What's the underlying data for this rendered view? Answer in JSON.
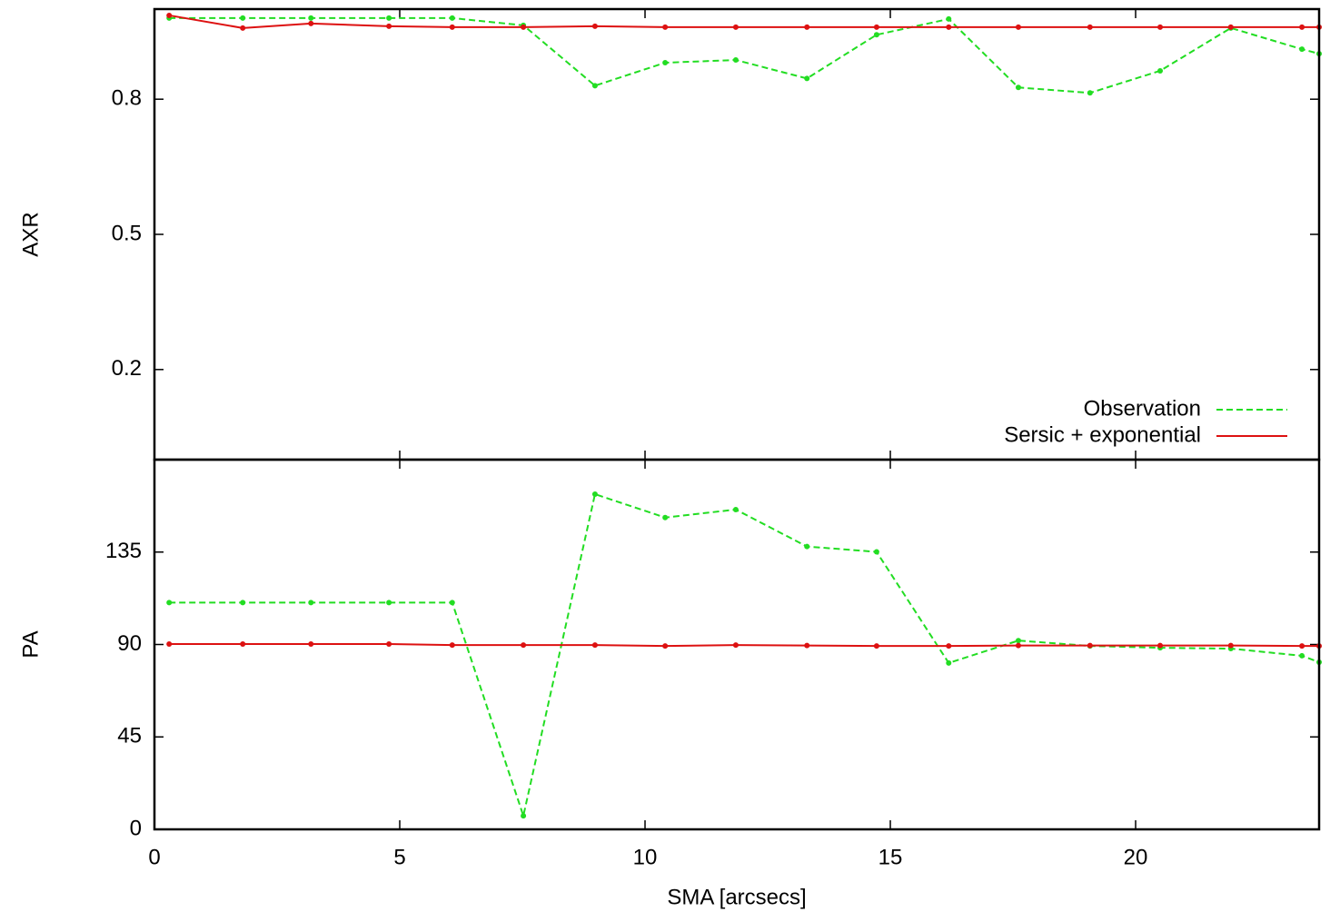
{
  "chart_data": [
    {
      "type": "line",
      "ylabel": "AXR",
      "x": [
        0.3,
        1.8,
        3.19,
        4.78,
        6.07,
        7.52,
        8.98,
        10.41,
        11.85,
        13.3,
        14.72,
        16.19,
        17.61,
        19.07,
        20.5,
        21.94,
        23.39,
        23.74
      ],
      "series": [
        {
          "name": "Observation",
          "color": "#22dd22",
          "linestyle": "dashed",
          "values": [
            0.98,
            0.98,
            0.98,
            0.98,
            0.98,
            0.964,
            0.83,
            0.881,
            0.887,
            0.846,
            0.943,
            0.978,
            0.826,
            0.814,
            0.863,
            0.958,
            0.911,
            0.901
          ]
        },
        {
          "name": "Sersic + exponential",
          "color": "#dd1111",
          "linestyle": "solid",
          "values": [
            0.986,
            0.958,
            0.968,
            0.962,
            0.96,
            0.96,
            0.962,
            0.96,
            0.96,
            0.96,
            0.96,
            0.96,
            0.96,
            0.96,
            0.96,
            0.96,
            0.96,
            0.96
          ]
        }
      ],
      "xlim": [
        0,
        23.74
      ],
      "ylim": [
        0,
        1
      ],
      "xticks": [
        0,
        5,
        10,
        15,
        20
      ],
      "yticks": [
        0.2,
        0.5,
        0.8
      ],
      "legend": "lower right"
    },
    {
      "type": "line",
      "ylabel": "PA",
      "xlabel": "SMA [arcsecs]",
      "x": [
        0.3,
        1.8,
        3.19,
        4.78,
        6.07,
        7.52,
        8.98,
        10.41,
        11.85,
        13.3,
        14.72,
        16.19,
        17.61,
        19.07,
        20.5,
        21.94,
        23.39,
        23.74
      ],
      "series": [
        {
          "color": "#22dd22",
          "linestyle": "dashed",
          "values": [
            110.4,
            110.4,
            110.4,
            110.4,
            110.4,
            6.6,
            163.2,
            151.8,
            155.7,
            137.7,
            135.1,
            81.0,
            91.9,
            89.3,
            88.4,
            88.0,
            84.5,
            81.4
          ]
        },
        {
          "color": "#dd1111",
          "linestyle": "solid",
          "values": [
            90.2,
            90.2,
            90.2,
            90.2,
            89.7,
            89.7,
            89.7,
            89.3,
            89.7,
            89.5,
            89.3,
            89.3,
            89.5,
            89.5,
            89.5,
            89.5,
            89.3,
            89.3
          ]
        }
      ],
      "xlim": [
        0,
        23.74
      ],
      "ylim": [
        0,
        180
      ],
      "xticks": [
        0,
        5,
        10,
        15,
        20
      ],
      "yticks": [
        0,
        45,
        90,
        135
      ]
    }
  ]
}
